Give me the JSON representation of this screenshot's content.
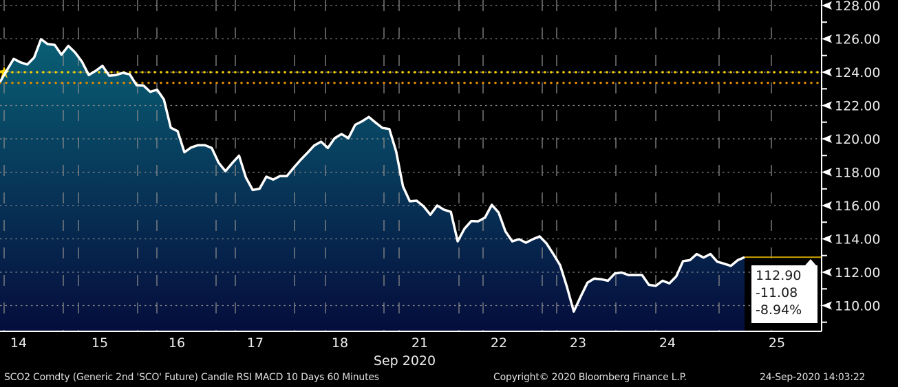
{
  "chart_data": {
    "type": "area",
    "title": "",
    "xlabel": "Sep 2020",
    "ylabel": "",
    "x_tick_labels": [
      "14",
      "15",
      "16",
      "17",
      "18",
      "21",
      "22",
      "23",
      "24",
      "25"
    ],
    "y_tick_labels": [
      "128.00",
      "126.00",
      "124.00",
      "122.00",
      "120.00",
      "118.00",
      "116.00",
      "114.00",
      "112.00",
      "110.00"
    ],
    "ylim": [
      108.5,
      128.3
    ],
    "grid": true,
    "axis_side": "right",
    "values": [
      123.41,
      124.11,
      124.8,
      124.59,
      124.46,
      124.88,
      125.98,
      125.68,
      125.64,
      125.05,
      125.58,
      125.18,
      124.63,
      123.83,
      124.08,
      124.38,
      123.79,
      123.83,
      123.96,
      123.87,
      123.22,
      123.2,
      122.82,
      122.95,
      122.36,
      120.67,
      120.46,
      119.2,
      119.49,
      119.62,
      119.62,
      119.45,
      118.57,
      118.06,
      118.55,
      118.99,
      117.68,
      116.93,
      117.01,
      117.73,
      117.56,
      117.77,
      117.77,
      118.27,
      118.74,
      119.16,
      119.6,
      119.83,
      119.45,
      120.04,
      120.29,
      120.04,
      120.84,
      121.05,
      121.31,
      120.97,
      120.65,
      120.59,
      119.24,
      117.14,
      116.25,
      116.29,
      115.96,
      115.45,
      116.0,
      115.75,
      115.62,
      113.85,
      114.61,
      115.07,
      115.05,
      115.28,
      116.04,
      115.58,
      114.44,
      113.85,
      113.98,
      113.77,
      113.98,
      114.15,
      113.73,
      113.09,
      112.42,
      111.12,
      109.64,
      110.53,
      111.37,
      111.62,
      111.58,
      111.49,
      111.92,
      111.98,
      111.83,
      111.83,
      111.83,
      111.24,
      111.18,
      111.49,
      111.33,
      111.75,
      112.67,
      112.72,
      113.09,
      112.88,
      113.09,
      112.63,
      112.51,
      112.38,
      112.72,
      112.9
    ],
    "reference_lines": [
      {
        "value": 124.0,
        "color": "#f5d000",
        "style": "dotted"
      },
      {
        "value": 123.36,
        "color": "#d98a00",
        "style": "dotted"
      }
    ],
    "last_price_line_color": "#c8a000",
    "fill_gradient": [
      "#0a6a7c",
      "#050d3c"
    ],
    "line_color": "#ffffff",
    "last_value_box": {
      "price": "112.90",
      "change": "-11.08",
      "change_pct": "-8.94%"
    }
  },
  "footer": {
    "description": "SCO2 Comdty (Generic 2nd 'SCO' Future) Candle RSI MACD 10 Days 60 Minutes",
    "copyright": "Copyright© 2020 Bloomberg Finance L.P.",
    "timestamp": "24-Sep-2020 14:03:22"
  }
}
